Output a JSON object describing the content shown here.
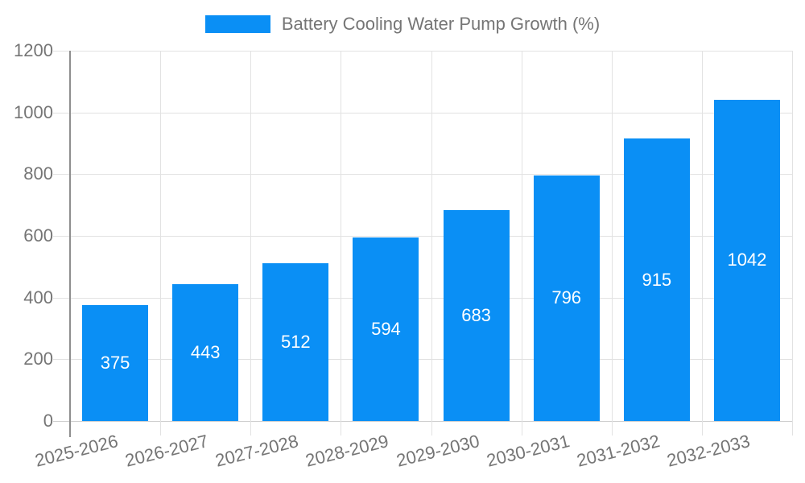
{
  "legend": {
    "label": "Battery Cooling Water Pump Growth (%)"
  },
  "chart_data": {
    "type": "bar",
    "title": "Battery Cooling Water Pump Growth (%)",
    "categories": [
      "2025-2026",
      "2026-2027",
      "2027-2028",
      "2028-2029",
      "2029-2030",
      "2030-2031",
      "2031-2032",
      "2032-2033"
    ],
    "values": [
      375,
      443,
      512,
      594,
      683,
      796,
      915,
      1042
    ],
    "xlabel": "",
    "ylabel": "",
    "ylim": [
      0,
      1200
    ],
    "yticks": [
      0,
      200,
      400,
      600,
      800,
      1000,
      1200
    ],
    "grid": true,
    "legend_position": "top-center",
    "bar_labels_visible": true,
    "colors": {
      "bar": "#0a8ff5",
      "bar_label": "#ffffff",
      "axis_text": "#757575",
      "gridline": "#e2e2e2",
      "zero_line": "#cfcfcf",
      "axis_line": "#8f8f8f",
      "background": "#ffffff"
    }
  }
}
